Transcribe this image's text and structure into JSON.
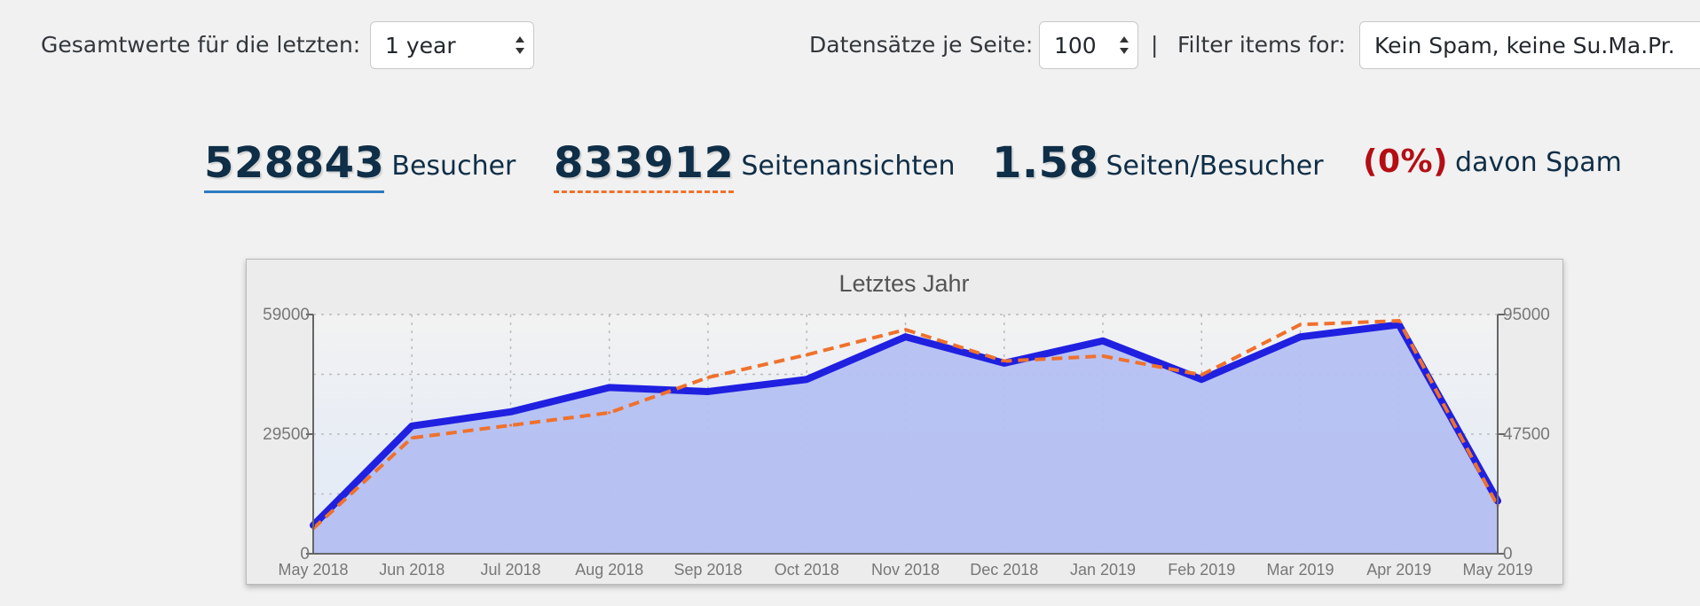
{
  "toolbar": {
    "range_label": "Gesamtwerte für die letzten:",
    "range_value": "1 year",
    "per_page_label": "Datensätze je Seite:",
    "per_page_value": "100",
    "separator": "|",
    "filter_label": "Filter items for:",
    "filter_value": "Kein Spam, keine Su.Ma.Pr."
  },
  "stats": {
    "visitors_value": "528843",
    "visitors_label": "Besucher",
    "pageviews_value": "833912",
    "pageviews_label": "Seitenansichten",
    "ratio_value": "1.58",
    "ratio_label": "Seiten/Besucher",
    "spam_value": "(0%)",
    "spam_label": "davon Spam"
  },
  "colors": {
    "visitors_line": "#2020e0",
    "pageviews_line": "#f0712c",
    "area_fill": "#b4c0f2",
    "spam_red": "#b40e14",
    "accent_blue": "#2a7bc0"
  },
  "chart_data": {
    "type": "line",
    "title": "Letztes Jahr",
    "x": [
      "May 2018",
      "Jun 2018",
      "Jul 2018",
      "Aug 2018",
      "Sep 2018",
      "Oct 2018",
      "Nov 2018",
      "Dec 2018",
      "Jan 2019",
      "Feb 2019",
      "Mar 2019",
      "Apr 2019",
      "May 2019"
    ],
    "y_left": {
      "ticks": [
        "0",
        "29500",
        "59000"
      ],
      "range": [
        0,
        59000
      ]
    },
    "y_right": {
      "ticks": [
        "0",
        "47500",
        "95000"
      ],
      "range": [
        0,
        95000
      ]
    },
    "grid": true,
    "series": [
      {
        "name": "Besucher",
        "axis": "left",
        "style": "solid-area",
        "values": [
          7000,
          31500,
          35000,
          41000,
          40000,
          43000,
          53500,
          47000,
          52500,
          43000,
          53500,
          56500,
          13000
        ]
      },
      {
        "name": "Seitenansichten",
        "axis": "right",
        "style": "dashed",
        "values": [
          10000,
          46000,
          51000,
          56000,
          70000,
          79000,
          89000,
          76500,
          78500,
          71000,
          91000,
          92500,
          19000
        ]
      }
    ]
  }
}
